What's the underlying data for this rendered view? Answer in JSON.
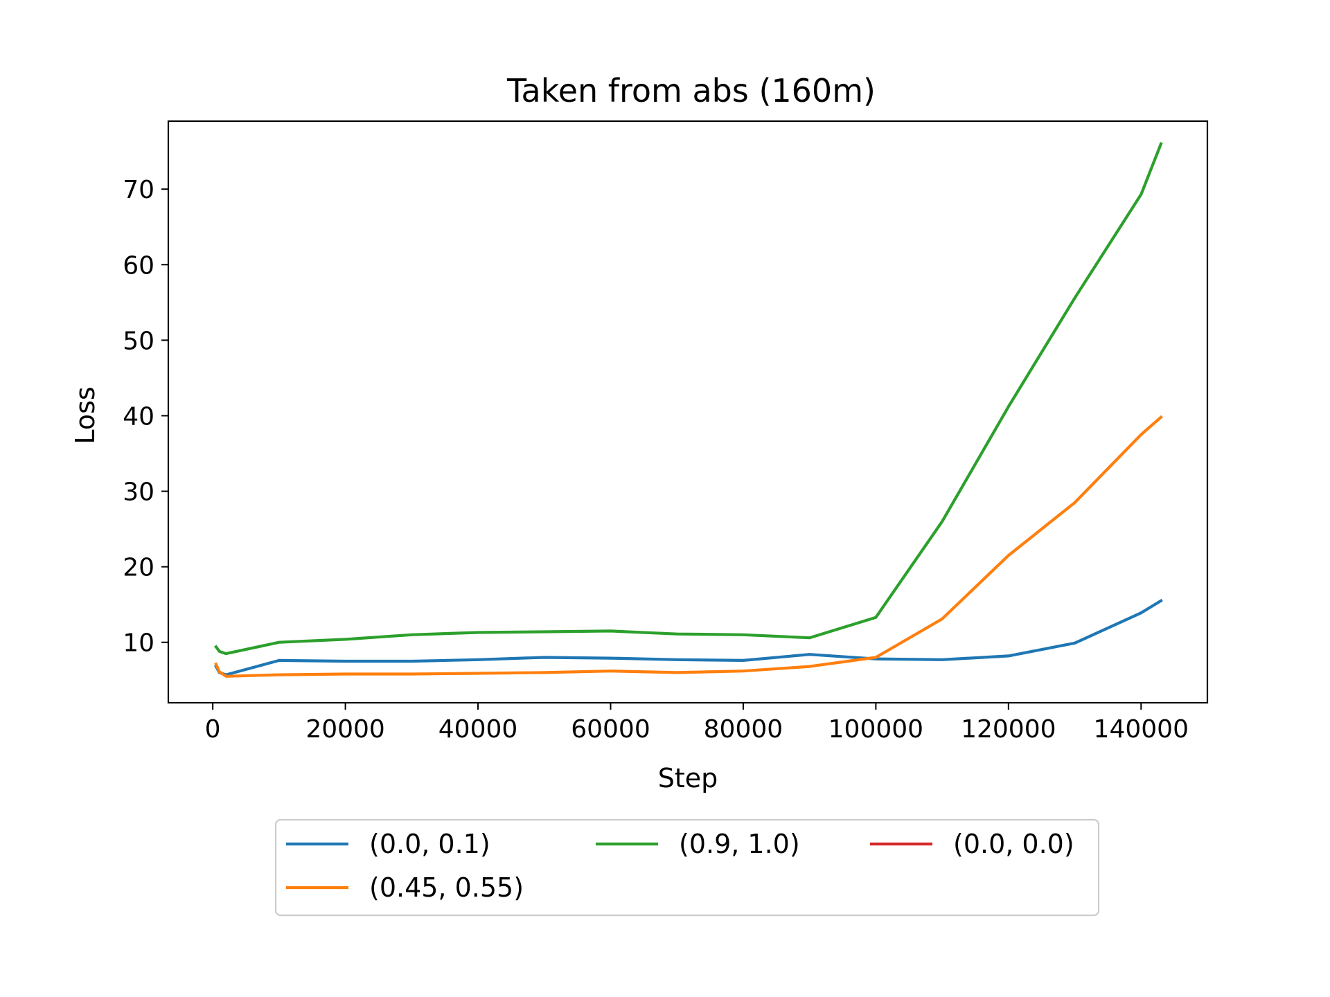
{
  "chart_data": {
    "type": "line",
    "title": "Taken from abs (160m)",
    "xlabel": "Step",
    "ylabel": "Loss",
    "xlim": [
      -6700,
      150000
    ],
    "ylim": [
      2,
      79
    ],
    "x_ticks": [
      0,
      20000,
      40000,
      60000,
      80000,
      100000,
      120000,
      140000
    ],
    "y_ticks": [
      10,
      20,
      30,
      40,
      50,
      60,
      70
    ],
    "grid": false,
    "legend": {
      "placement": "below-center",
      "columns": 3
    },
    "series": [
      {
        "name": "(0.0, 0.1)",
        "color": "#1f77b4",
        "x": [
          500,
          1000,
          2000,
          10000,
          20000,
          30000,
          40000,
          50000,
          60000,
          70000,
          80000,
          90000,
          100000,
          110000,
          120000,
          130000,
          140000,
          143000
        ],
        "y": [
          6.8,
          6.0,
          5.7,
          7.6,
          7.5,
          7.5,
          7.7,
          8.0,
          7.9,
          7.7,
          7.6,
          8.4,
          7.8,
          7.7,
          8.2,
          9.9,
          13.9,
          15.5
        ]
      },
      {
        "name": "(0.45, 0.55)",
        "color": "#ff7f0e",
        "x": [
          500,
          1000,
          2000,
          10000,
          20000,
          30000,
          40000,
          50000,
          60000,
          70000,
          80000,
          90000,
          100000,
          110000,
          120000,
          130000,
          140000,
          143000
        ],
        "y": [
          7.1,
          6.1,
          5.5,
          5.7,
          5.8,
          5.8,
          5.9,
          6.0,
          6.2,
          6.0,
          6.2,
          6.8,
          8.0,
          13.1,
          21.5,
          28.5,
          37.5,
          39.8
        ]
      },
      {
        "name": "(0.9, 1.0)",
        "color": "#2ca02c",
        "x": [
          500,
          1000,
          2000,
          10000,
          20000,
          30000,
          40000,
          50000,
          60000,
          70000,
          80000,
          90000,
          100000,
          110000,
          120000,
          130000,
          140000,
          143000
        ],
        "y": [
          9.4,
          8.8,
          8.5,
          10.0,
          10.4,
          11.0,
          11.3,
          11.4,
          11.5,
          11.1,
          11.0,
          10.6,
          13.3,
          26.0,
          41.2,
          55.6,
          69.3,
          76.0
        ]
      },
      {
        "name": "(0.0, 0.0)",
        "color": "#d62728",
        "x": [],
        "y": []
      }
    ]
  }
}
